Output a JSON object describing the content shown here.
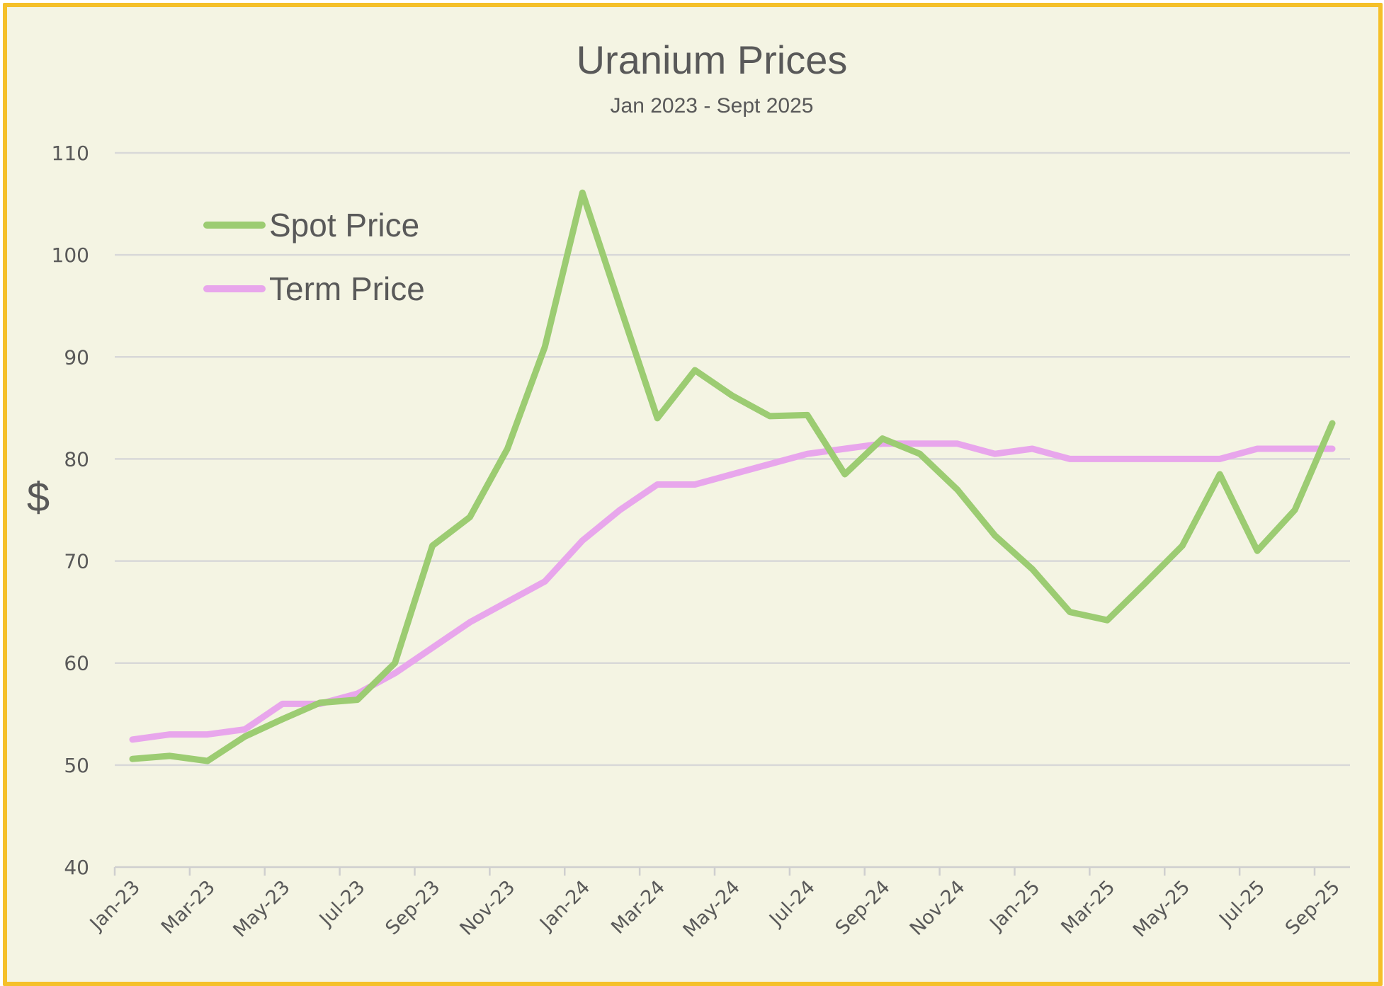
{
  "chart_data": {
    "type": "line",
    "title": "Uranium Prices",
    "subtitle": "Jan 2023 - Sept 2025",
    "ylabel": "$",
    "xlabel": "",
    "ylim": [
      40,
      110
    ],
    "yticks": [
      40,
      50,
      60,
      70,
      80,
      90,
      100,
      110
    ],
    "grid": true,
    "legend_position": "top-left",
    "x": [
      "Jan-23",
      "Feb-23",
      "Mar-23",
      "Apr-23",
      "May-23",
      "Jun-23",
      "Jul-23",
      "Aug-23",
      "Sep-23",
      "Oct-23",
      "Nov-23",
      "Dec-23",
      "Jan-24",
      "Feb-24",
      "Mar-24",
      "Apr-24",
      "May-24",
      "Jun-24",
      "Jul-24",
      "Aug-24",
      "Sep-24",
      "Oct-24",
      "Nov-24",
      "Dec-24",
      "Jan-25",
      "Feb-25",
      "Mar-25",
      "Apr-25",
      "May-25",
      "Jun-25",
      "Jul-25",
      "Aug-25",
      "Sep-25"
    ],
    "xtick_labels": [
      "Jan-23",
      "Mar-23",
      "May-23",
      "Jul-23",
      "Sep-23",
      "Nov-23",
      "Jan-24",
      "Mar-24",
      "May-24",
      "Jul-24",
      "Sep-24",
      "Nov-24",
      "Jan-25",
      "Mar-25",
      "May-25",
      "Jul-25",
      "Sep-25"
    ],
    "series": [
      {
        "name": "Spot Price",
        "color": "#9ccc72",
        "values": [
          50.6,
          50.9,
          50.4,
          52.8,
          54.5,
          56.1,
          56.4,
          60.0,
          71.5,
          74.3,
          81.0,
          91.0,
          106.1,
          95.0,
          84.0,
          88.7,
          86.2,
          84.2,
          84.3,
          78.5,
          82.0,
          80.5,
          77.0,
          72.5,
          69.2,
          65.0,
          64.2,
          67.8,
          71.5,
          78.5,
          71.0,
          75.0,
          83.5
        ]
      },
      {
        "name": "Term Price",
        "color": "#e8a6ec",
        "values": [
          52.5,
          53.0,
          53.0,
          53.5,
          56.0,
          56.0,
          57.0,
          59.0,
          61.5,
          64.0,
          66.0,
          68.0,
          72.0,
          75.0,
          77.5,
          77.5,
          78.5,
          79.5,
          80.5,
          81.0,
          81.5,
          81.5,
          81.5,
          80.5,
          81.0,
          80.0,
          80.0,
          80.0,
          80.0,
          80.0,
          81.0,
          81.0,
          81.0
        ]
      }
    ]
  }
}
